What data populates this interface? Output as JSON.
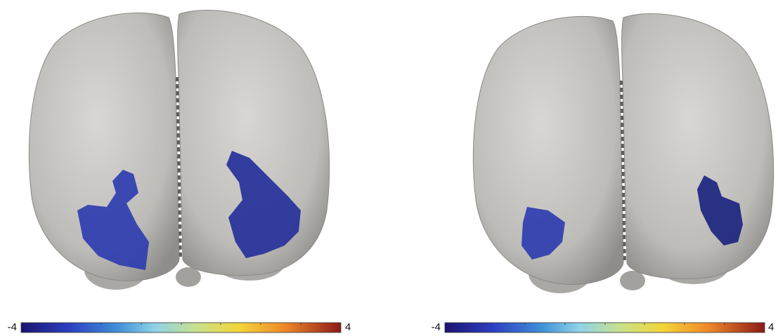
{
  "panels": [
    {
      "colorbar": {
        "min": -4,
        "max": 4
      }
    },
    {
      "colorbar": {
        "min": -4,
        "max": 4
      }
    }
  ]
}
